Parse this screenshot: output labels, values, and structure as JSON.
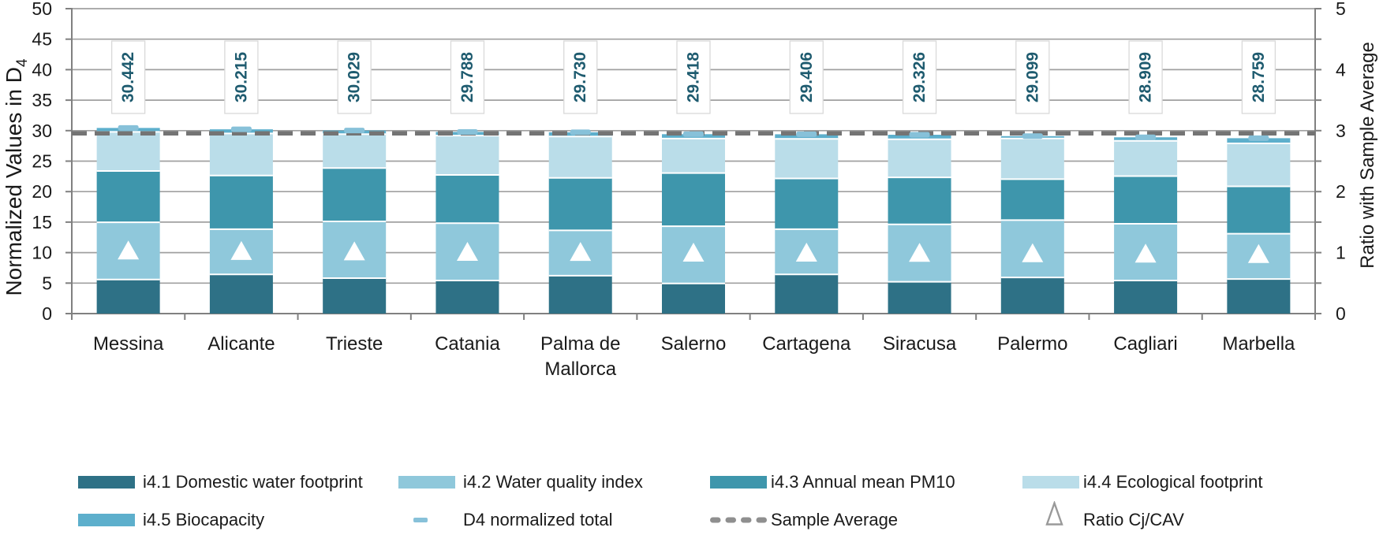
{
  "chart_data": {
    "type": "bar",
    "stacked": true,
    "categories": [
      "Messina",
      "Alicante",
      "Trieste",
      "Catania",
      "Palma de Mallorca",
      "Salerno",
      "Cartagena",
      "Siracusa",
      "Palermo",
      "Cagliari",
      "Marbella"
    ],
    "series": [
      {
        "name": "i4.1 Domestic water footprint",
        "color": "#2e7186",
        "values": [
          5.58,
          6.42,
          5.82,
          5.43,
          6.21,
          4.94,
          6.42,
          5.22,
          5.92,
          5.43,
          5.67
        ]
      },
      {
        "name": "i4.2 Water quality index",
        "color": "#8fc8db",
        "values": [
          9.39,
          7.42,
          9.3,
          9.39,
          7.43,
          9.39,
          7.42,
          9.41,
          9.4,
          9.3,
          7.43
        ]
      },
      {
        "name": "i4.3 Annual mean PM10",
        "color": "#3e96ac",
        "values": [
          8.42,
          8.8,
          8.75,
          7.92,
          8.61,
          8.71,
          8.31,
          7.71,
          6.72,
          7.81,
          7.77
        ]
      },
      {
        "name": "i4.4 Ecological footprint",
        "color": "#badde9",
        "values": [
          6.4,
          6.9,
          5.55,
          6.45,
          6.78,
          5.66,
          6.5,
          6.24,
          6.68,
          5.79,
          7.03
        ]
      },
      {
        "name": "i4.5 Biocapacity",
        "color": "#5dafcc",
        "values": [
          0.652,
          0.675,
          0.609,
          0.598,
          0.7,
          0.718,
          0.756,
          0.746,
          0.379,
          0.579,
          0.859
        ]
      }
    ],
    "totals": {
      "name": "D4 normalized total",
      "color": "#87c1d9",
      "values": [
        30.442,
        30.215,
        30.029,
        29.788,
        29.73,
        29.418,
        29.406,
        29.326,
        29.099,
        28.909,
        28.759
      ],
      "labels": [
        "30.442",
        "30.215",
        "30.029",
        "29.788",
        "29.730",
        "29.418",
        "29.406",
        "29.326",
        "29.099",
        "28.909",
        "28.759"
      ],
      "label_color": "#1e5b6f"
    },
    "sample_average": {
      "name": "Sample Average",
      "value": 29.556,
      "color": "#747474"
    },
    "ratio_markers": {
      "name": "Ratio Cj/CAV",
      "values": [
        1.03,
        1.022,
        1.016,
        1.008,
        1.006,
        0.995,
        0.995,
        0.992,
        0.985,
        0.978,
        0.973
      ],
      "marker": "triangle",
      "color": "#ffffff"
    },
    "left_axis": {
      "title": "Normalized Values in D",
      "title_sub": "4",
      "min": 0,
      "max": 50,
      "step": 5,
      "tick_labels": [
        "0",
        "5",
        "10",
        "15",
        "20",
        "25",
        "30",
        "35",
        "40",
        "45",
        "50"
      ]
    },
    "right_axis": {
      "title": "Ratio with Sample Average",
      "min": 0,
      "max": 5,
      "step": 1,
      "minor_step": 0.5,
      "tick_labels": [
        "0",
        "1",
        "2",
        "3",
        "4",
        "5"
      ]
    },
    "grid": {
      "on": true,
      "color": "#a0a0a0"
    },
    "legend": {
      "position": "bottom",
      "rows": [
        [
          {
            "label": "i4.1 Domestic water footprint",
            "marker": "rect",
            "color": "#2e7186"
          },
          {
            "label": "i4.2 Water quality index",
            "marker": "rect",
            "color": "#8fc8db"
          },
          {
            "label": "i4.3 Annual mean PM10",
            "marker": "rect",
            "color": "#3e96ac"
          },
          {
            "label": "i4.4 Ecological footprint",
            "marker": "rect",
            "color": "#badde9"
          }
        ],
        [
          {
            "label": "i4.5 Biocapacity",
            "marker": "rect",
            "color": "#5dafcc"
          },
          {
            "label": "D4 normalized total",
            "marker": "dash",
            "color": "#87c1d9"
          },
          {
            "label": "Sample Average",
            "marker": "dashed-line",
            "color": "#747474"
          },
          {
            "label": "Ratio Cj/CAV",
            "marker": "triangle-outline",
            "color": "#7f7f7f"
          }
        ]
      ]
    }
  }
}
